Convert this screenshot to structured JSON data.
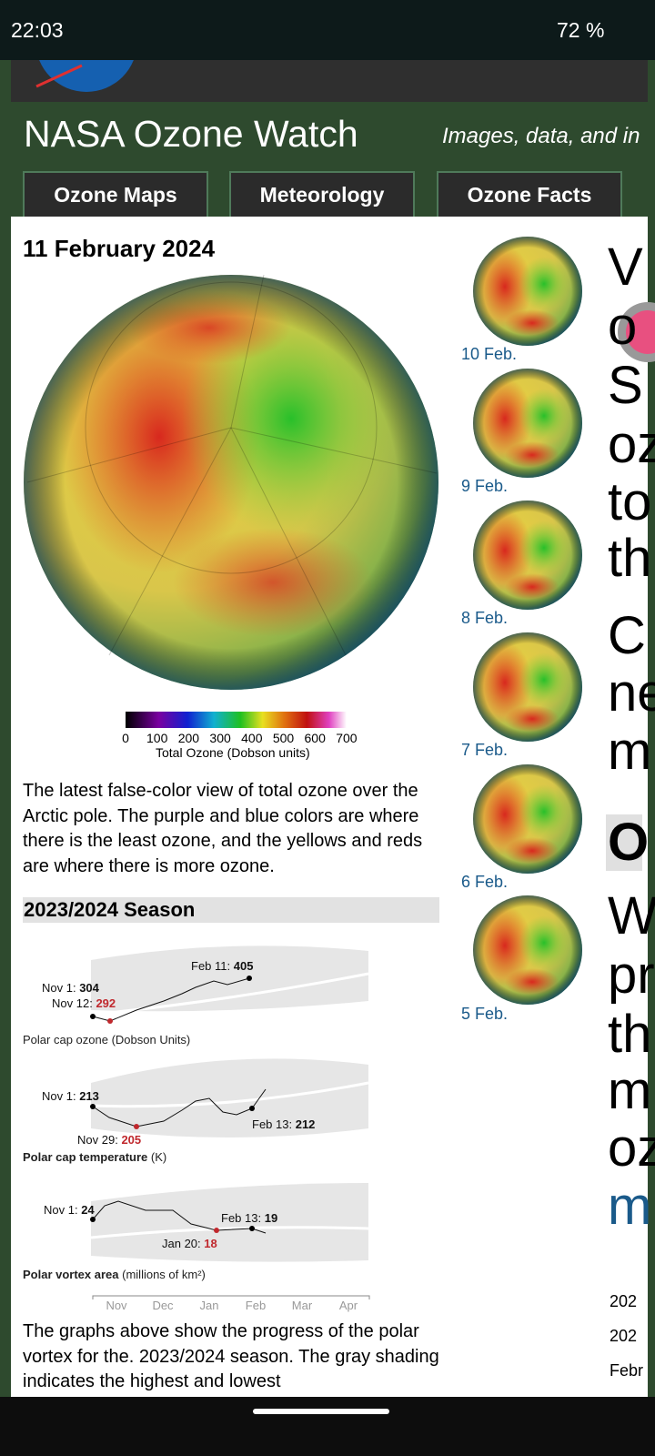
{
  "status_bar": {
    "time": "22:03",
    "battery": "72 %"
  },
  "header": {
    "title": "NASA Ozone Watch",
    "tagline": "Images, data, and in"
  },
  "nav": [
    "Ozone Maps",
    "Meteorology",
    "Ozone Facts"
  ],
  "main": {
    "date": "11 February 2024",
    "colorbar": {
      "ticks": [
        "0",
        "100",
        "200",
        "300",
        "400",
        "500",
        "600",
        "700"
      ],
      "label": "Total Ozone (Dobson units)"
    },
    "description": "The latest false-color view of total ozone over the Arctic pole. The purple and blue colors are where there is the least ozone, and the yellows and reds are where there is more ozone.",
    "season_heading": "2023/2024 Season",
    "graphs": [
      {
        "caption": "Polar cap ozone (Dobson Units)",
        "annotations": [
          {
            "label": "Nov 1:",
            "value": "304"
          },
          {
            "label": "Nov 12:",
            "value": "292"
          },
          {
            "label": "Feb 11:",
            "value": "405"
          }
        ]
      },
      {
        "caption": "Polar cap temperature",
        "caption_unit": "(K)",
        "annotations": [
          {
            "label": "Nov 1:",
            "value": "213"
          },
          {
            "label": "Nov 29:",
            "value": "205"
          },
          {
            "label": "Feb 13:",
            "value": "212"
          }
        ]
      },
      {
        "caption": "Polar vortex area",
        "caption_unit": "(millions of km²)",
        "annotations": [
          {
            "label": "Nov 1:",
            "value": "24"
          },
          {
            "label": "Jan 20:",
            "value": "18"
          },
          {
            "label": "Feb 13:",
            "value": "19"
          }
        ]
      }
    ],
    "months": [
      "Nov",
      "Dec",
      "Jan",
      "Feb",
      "Mar",
      "Apr"
    ],
    "graphs_note": "The graphs above show the progress of the polar vortex for the. 2023/2024 season. The gray shading indicates the highest and lowest"
  },
  "thumbnails": [
    "10 Feb.",
    "9 Feb.",
    "8 Feb.",
    "7 Feb.",
    "6 Feb.",
    "5 Feb."
  ],
  "side_text": {
    "large": [
      "V",
      "o",
      "S",
      "oz",
      "to",
      "th",
      "C",
      "ne",
      "m",
      "O",
      "W",
      "pr",
      "th",
      "m",
      "oz",
      "m"
    ],
    "small": [
      "202",
      "202",
      "Febr"
    ]
  }
}
